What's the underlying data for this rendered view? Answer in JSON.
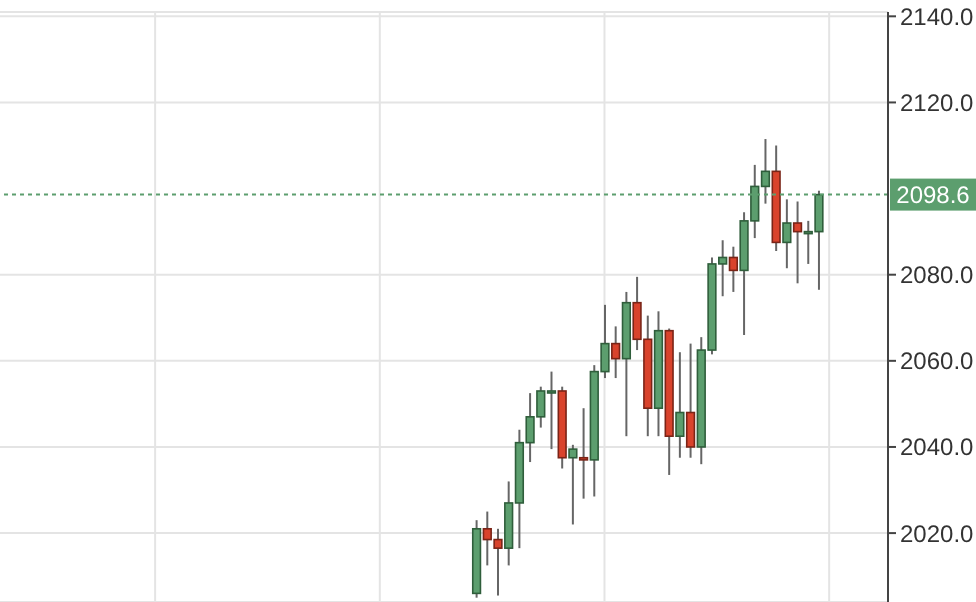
{
  "chart_data": {
    "type": "candlestick",
    "categories": [
      null,
      null,
      null,
      null,
      null,
      null,
      null,
      null,
      null,
      null,
      null,
      null,
      null,
      null,
      null,
      null,
      null,
      null,
      null,
      null,
      null,
      null,
      null,
      null,
      null,
      null,
      null,
      null,
      null,
      null,
      null,
      null,
      null,
      null,
      null,
      null,
      null,
      null,
      null,
      null,
      null,
      null,
      null,
      null,
      null,
      null,
      null,
      null,
      null,
      null,
      null,
      null,
      null,
      null,
      null,
      null,
      null,
      null,
      null,
      null,
      null,
      null,
      null,
      null,
      null,
      null,
      null,
      null,
      null,
      null,
      null,
      null,
      null,
      null,
      null,
      null,
      null,
      null,
      null,
      null,
      null,
      null,
      null
    ],
    "ohlc": [
      null,
      null,
      null,
      null,
      null,
      null,
      null,
      null,
      null,
      null,
      null,
      null,
      null,
      null,
      null,
      null,
      null,
      null,
      null,
      null,
      null,
      null,
      null,
      null,
      null,
      null,
      null,
      null,
      null,
      null,
      null,
      null,
      null,
      null,
      null,
      null,
      null,
      null,
      null,
      null,
      null,
      null,
      null,
      null,
      [
        2006,
        2023,
        2005,
        2021
      ],
      [
        2021,
        2025,
        2012.5,
        2018.5
      ],
      [
        2018.5,
        2021,
        2005.5,
        2016.5
      ],
      [
        2016.5,
        2032,
        2012.5,
        2027
      ],
      [
        2027,
        2044,
        2016.5,
        2041
      ],
      [
        2041,
        2052.5,
        2036.5,
        2047
      ],
      [
        2047,
        2054,
        2044.5,
        2053
      ],
      [
        2053,
        2057.5,
        2039.5,
        2053
      ],
      [
        2053,
        2054,
        2035,
        2037.5
      ],
      [
        2037.5,
        2040.5,
        2022,
        2039.5
      ],
      [
        2037.5,
        2049,
        2028,
        2037
      ],
      [
        2037,
        2059,
        2028.5,
        2057.5
      ],
      [
        2057.5,
        2073,
        2056,
        2064
      ],
      [
        2064,
        2068,
        2056,
        2060.5
      ],
      [
        2060.5,
        2076,
        2042.5,
        2073.5
      ],
      [
        2073.5,
        2079.5,
        2062.5,
        2065
      ],
      [
        2065,
        2070.5,
        2042.5,
        2049
      ],
      [
        2049,
        2071.5,
        2042.5,
        2067
      ],
      [
        2067,
        2067.5,
        2033.5,
        2042.5
      ],
      [
        2042.5,
        2062,
        2037.5,
        2048
      ],
      [
        2048,
        2064,
        2037.5,
        2040
      ],
      [
        2040,
        2065.5,
        2036,
        2062.5
      ],
      [
        2062.5,
        2084,
        2061.5,
        2082.5
      ],
      [
        2082.5,
        2088,
        2075,
        2084
      ],
      [
        2084,
        2086.5,
        2076,
        2081
      ],
      [
        2081,
        2094.5,
        2066,
        2092.5
      ],
      [
        2092.5,
        2105.5,
        2088.5,
        2100.5
      ],
      [
        2100.5,
        2111.5,
        2096.5,
        2104
      ],
      [
        2104,
        2110,
        2085.5,
        2087.5
      ],
      [
        2087.5,
        2097.5,
        2081.5,
        2092
      ],
      [
        2092,
        2097,
        2078,
        2090
      ],
      [
        2090,
        2092.5,
        2082.5,
        2090
      ],
      [
        2090,
        2099.5,
        2076.5,
        2098.6
      ],
      null,
      null,
      null,
      null,
      null,
      null
    ],
    "colors": [
      null,
      null,
      null,
      null,
      null,
      null,
      null,
      null,
      null,
      null,
      null,
      null,
      null,
      null,
      null,
      null,
      null,
      null,
      null,
      null,
      null,
      null,
      null,
      null,
      null,
      null,
      null,
      null,
      null,
      null,
      null,
      null,
      null,
      null,
      null,
      null,
      null,
      null,
      null,
      null,
      null,
      null,
      null,
      null,
      "#5c9e6e",
      "#d9432c",
      "#d9432c",
      "#5c9e6e",
      "#5c9e6e",
      "#5c9e6e",
      "#5c9e6e",
      "#5c9e6e",
      "#d9432c",
      "#5c9e6e",
      "#d9432c",
      "#5c9e6e",
      "#5c9e6e",
      "#d9432c",
      "#5c9e6e",
      "#d9432c",
      "#d9432c",
      "#5c9e6e",
      "#d9432c",
      "#5c9e6e",
      "#d9432c",
      "#5c9e6e",
      "#5c9e6e",
      "#5c9e6e",
      "#d9432c",
      "#5c9e6e",
      "#5c9e6e",
      "#5c9e6e",
      "#d9432c",
      "#5c9e6e",
      "#d9432c",
      "#5c9e6e",
      "#5c9e6e",
      null,
      null,
      null,
      null,
      null,
      null
    ],
    "ylim": [
      2004,
      2141
    ],
    "yticks": [
      {
        "value": 2020,
        "label": "2020.0"
      },
      {
        "value": 2040,
        "label": "2040.0"
      },
      {
        "value": 2060,
        "label": "2060.0"
      },
      {
        "value": 2080,
        "label": "2080.0"
      },
      {
        "value": 2120,
        "label": "2120.0"
      },
      {
        "value": 2140,
        "label": "2140.0"
      }
    ],
    "ref_lines": [
      {
        "axis": "y",
        "value": 2098.6,
        "label": "2098.6",
        "color": "#5c9e6e",
        "line_style": "dotted"
      }
    ],
    "grid": true,
    "tick_labels": "y"
  }
}
